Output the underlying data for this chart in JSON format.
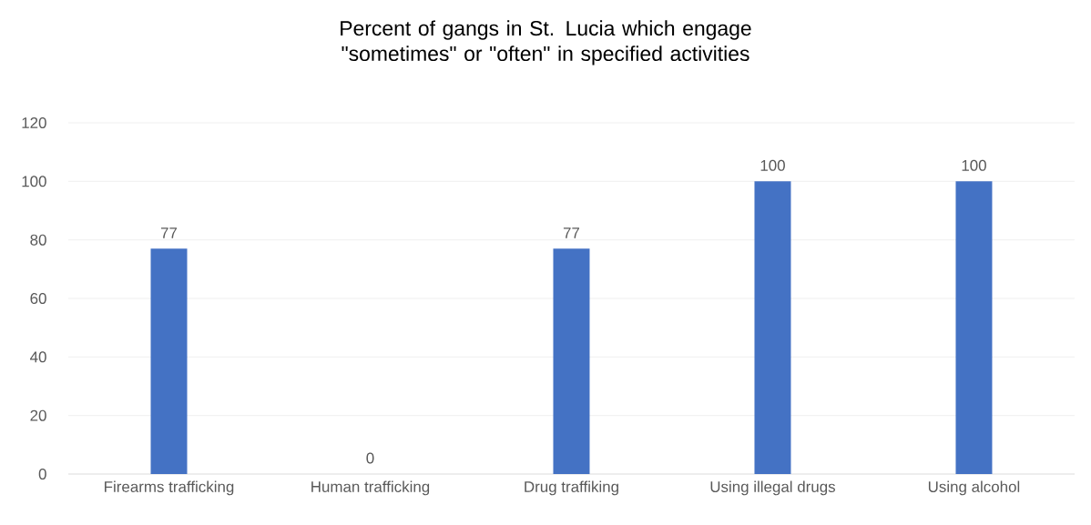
{
  "chart_data": {
    "type": "bar",
    "title": "Percent of gangs in St. Lucia which engage \"sometimes\" or \"often\" in specified activities",
    "categories": [
      "Firearms trafficking",
      "Human trafficking",
      "Drug traffiking",
      "Using illegal drugs",
      "Using alcohol"
    ],
    "values": [
      77,
      0,
      77,
      100,
      100
    ],
    "color": "#4472c4",
    "ylim": [
      0,
      120
    ],
    "yticks": [
      0,
      20,
      40,
      60,
      80,
      100,
      120
    ],
    "grid": "y",
    "data_labels": true
  }
}
